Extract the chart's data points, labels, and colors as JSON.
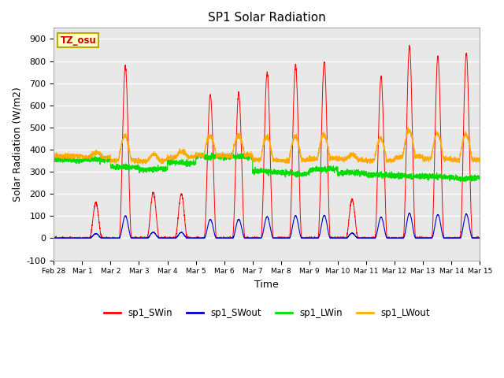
{
  "title": "SP1 Solar Radiation",
  "xlabel": "Time",
  "ylabel": "Solar Radiation (W/m2)",
  "ylim": [
    -100,
    950
  ],
  "yticks": [
    -100,
    0,
    100,
    200,
    300,
    400,
    500,
    600,
    700,
    800,
    900
  ],
  "colors": {
    "sp1_SWin": "#ff0000",
    "sp1_SWout": "#0000cc",
    "sp1_LWin": "#00dd00",
    "sp1_LWout": "#ffaa00"
  },
  "bg_color": "#e8e8e8",
  "annotation_text": "TZ_osu",
  "annotation_bg": "#ffffcc",
  "annotation_border": "#bbaa00",
  "annotation_text_color": "#cc0000",
  "legend_labels": [
    "sp1_SWin",
    "sp1_SWout",
    "sp1_LWin",
    "sp1_LWout"
  ],
  "n_days": 15,
  "xtick_labels": [
    "Feb 28",
    "Mar 1",
    "Mar 2",
    "Mar 3",
    "Mar 4",
    "Mar 5",
    "Mar 6",
    "Mar 7",
    "Mar 8",
    "Mar 9",
    "Mar 10",
    "Mar 11",
    "Mar 12",
    "Mar 13",
    "Mar 14",
    "Mar 15"
  ],
  "pts_per_day": 288,
  "figsize": [
    6.4,
    4.8
  ],
  "dpi": 100
}
